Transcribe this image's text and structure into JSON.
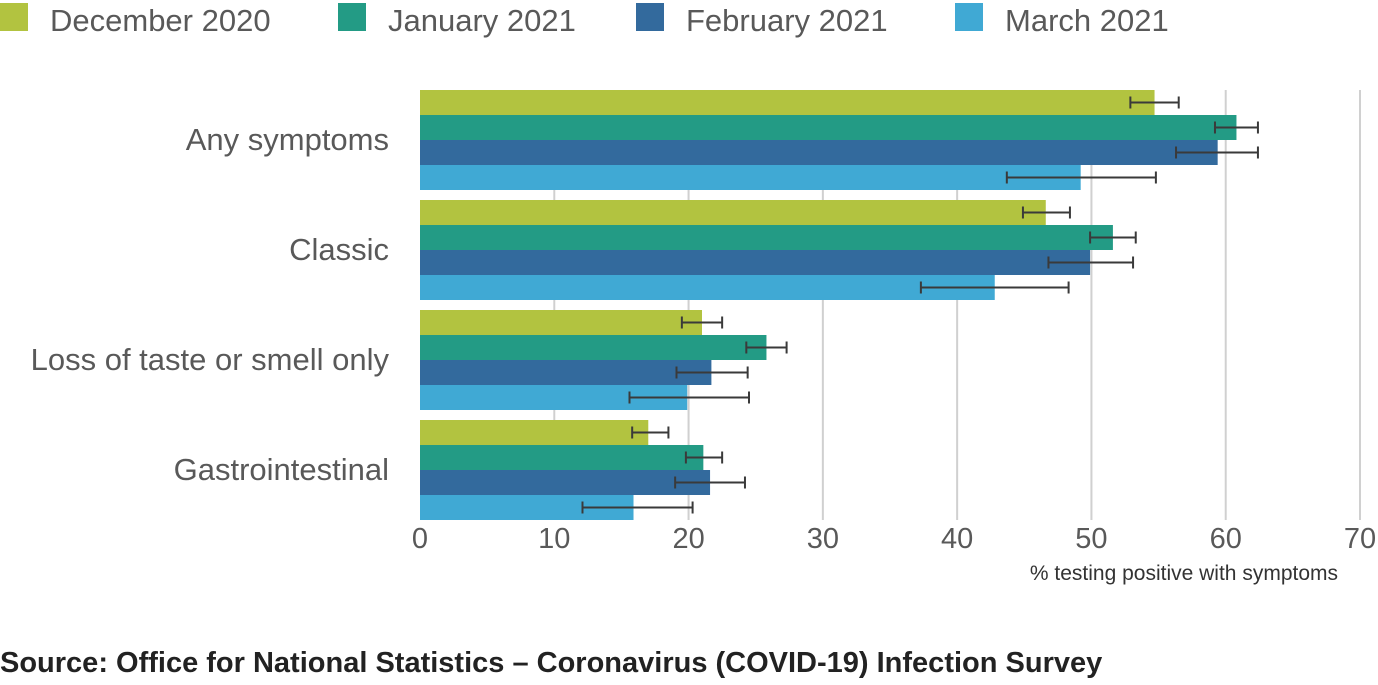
{
  "colors": {
    "December 2020": "#b2c340",
    "January 2021": "#239b85",
    "February 2021": "#336a9d",
    "March 2021": "#40a9d4",
    "gridline": "#d0d0d0",
    "error_bar": "#3a3a3a"
  },
  "source_text": "Source: Office for National Statistics – Coronavirus (COVID-19) Infection Survey",
  "chart_data": {
    "type": "bar",
    "orientation": "horizontal",
    "title": "",
    "xlabel": "% testing positive with symptoms",
    "ylabel": "",
    "xlim": [
      0,
      70
    ],
    "x_ticks": [
      0,
      10,
      20,
      30,
      40,
      50,
      60,
      70
    ],
    "grid": true,
    "legend_position": "top",
    "categories": [
      "Any symptoms",
      "Classic",
      "Loss of taste or smell only",
      "Gastrointestinal"
    ],
    "series": [
      {
        "name": "December 2020",
        "values": [
          54.7,
          46.6,
          21.0,
          17.0
        ],
        "ci_low": [
          52.9,
          44.9,
          19.5,
          15.8
        ],
        "ci_high": [
          56.5,
          48.4,
          22.5,
          18.5
        ]
      },
      {
        "name": "January 2021",
        "values": [
          60.8,
          51.6,
          25.8,
          21.1
        ],
        "ci_low": [
          59.2,
          49.9,
          24.3,
          19.8
        ],
        "ci_high": [
          62.4,
          53.3,
          27.3,
          22.5
        ]
      },
      {
        "name": "February 2021",
        "values": [
          59.4,
          49.9,
          21.7,
          21.6
        ],
        "ci_low": [
          56.3,
          46.8,
          19.1,
          19.0
        ],
        "ci_high": [
          62.4,
          53.1,
          24.4,
          24.2
        ]
      },
      {
        "name": "March 2021",
        "values": [
          49.2,
          42.8,
          19.9,
          15.9
        ],
        "ci_low": [
          43.7,
          37.3,
          15.6,
          12.1
        ],
        "ci_high": [
          54.8,
          48.3,
          24.5,
          20.3
        ]
      }
    ]
  }
}
